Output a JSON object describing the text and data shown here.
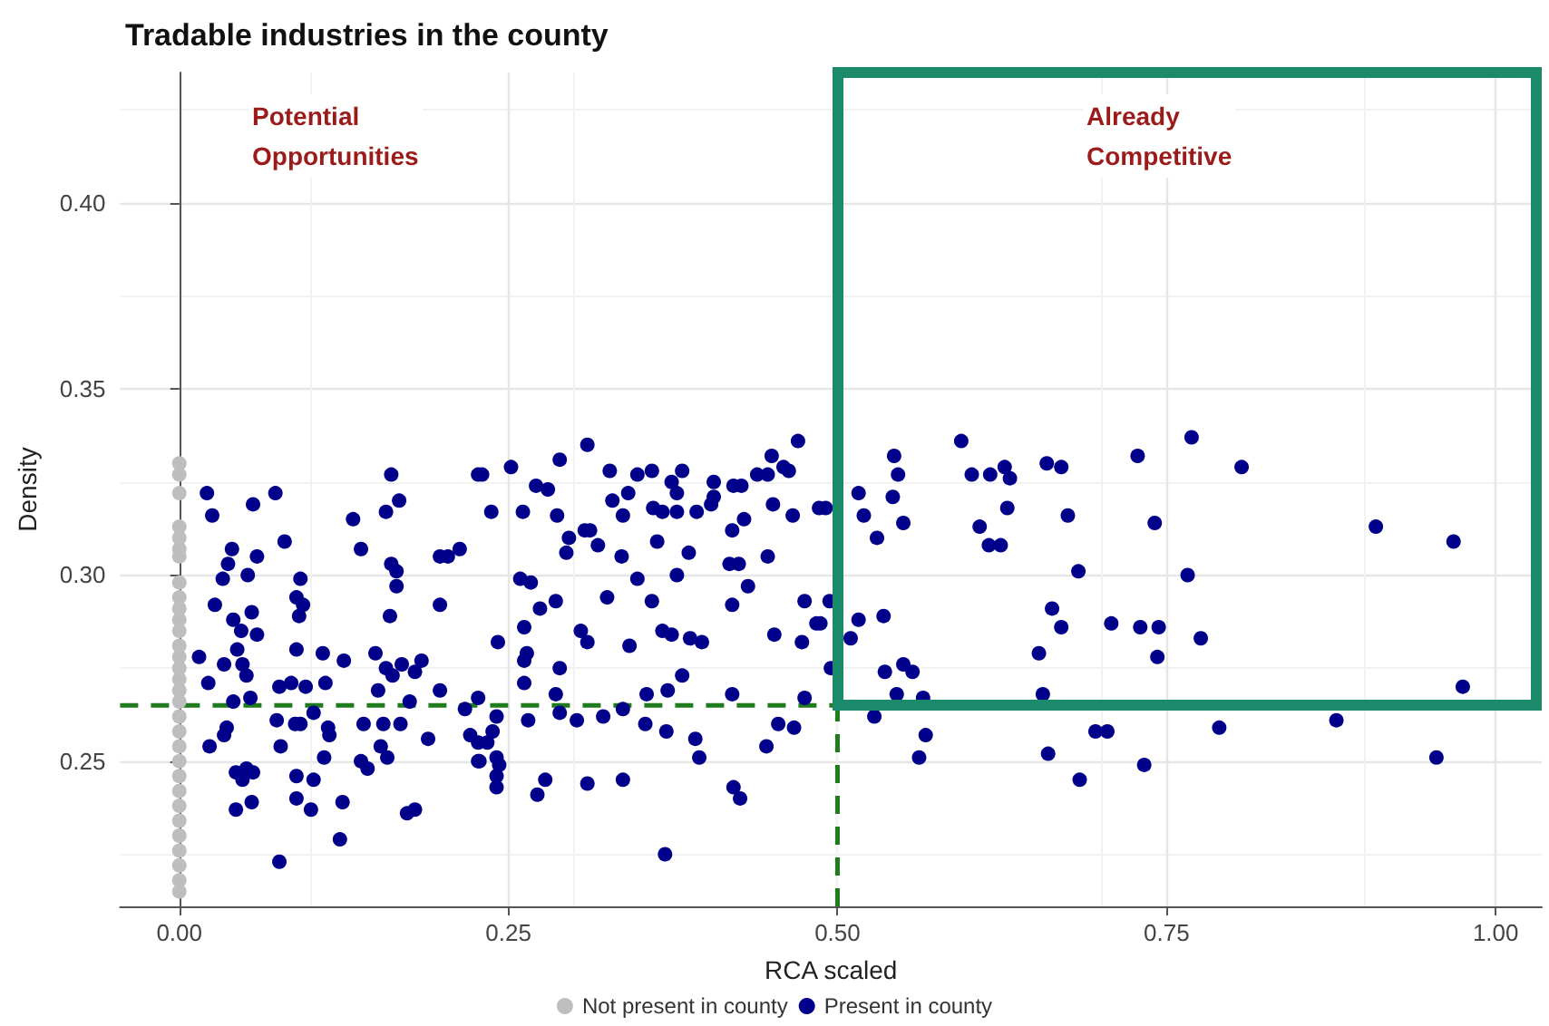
{
  "chart_data": {
    "type": "scatter",
    "title": "Tradable industries in the county",
    "xlabel": "RCA scaled",
    "ylabel": "Density",
    "annotations": [
      "Potential Opportunities",
      "Already Competitive"
    ],
    "xlim": [
      -0.045,
      1.035
    ],
    "ylim": [
      0.211,
      0.435
    ],
    "xticks": [
      {
        "value": 0,
        "label": "0.00"
      },
      {
        "value": 0.25,
        "label": "0.25"
      },
      {
        "value": 0.5,
        "label": "0.50"
      },
      {
        "value": 0.75,
        "label": "0.75"
      },
      {
        "value": 1,
        "label": "1.00"
      }
    ],
    "yticks": [
      {
        "value": 0.25,
        "label": "0.25"
      },
      {
        "value": 0.3,
        "label": "0.30"
      },
      {
        "value": 0.35,
        "label": "0.35"
      },
      {
        "value": 0.4,
        "label": "0.40"
      }
    ],
    "grid": true,
    "legend": "bottom",
    "marker": "circle",
    "ref_lines": [
      {
        "axis": "y",
        "value": 0.265,
        "color": "#1e7b1e",
        "line_style": "dashed"
      },
      {
        "axis": "x",
        "value": 0.5,
        "color": "#1e7b1e",
        "line_style": "dashed"
      }
    ],
    "series": [
      {
        "name": "Not present in county",
        "color": "#bebebe",
        "x": [
          0,
          0,
          0,
          0,
          0,
          0,
          0,
          0,
          0,
          0,
          0,
          0,
          0,
          0,
          0,
          0,
          0,
          0,
          0,
          0,
          0,
          0,
          0,
          0,
          0,
          0,
          0,
          0,
          0,
          0,
          0
        ],
        "values": [
          0.33,
          0.327,
          0.322,
          0.313,
          0.31,
          0.307,
          0.305,
          0.294,
          0.291,
          0.288,
          0.281,
          0.278,
          0.275,
          0.272,
          0.269,
          0.266,
          0.262,
          0.258,
          0.254,
          0.25,
          0.246,
          0.242,
          0.238,
          0.234,
          0.23,
          0.226,
          0.222,
          0.218,
          0.215,
          0.298,
          0.285
        ]
      },
      {
        "name": "Present in county",
        "color": "#00008b",
        "x": [
          0.594,
          0.543,
          0.546,
          0.516,
          0.542,
          0.52,
          0.55,
          0.53,
          0.602,
          0.616,
          0.627,
          0.631,
          0.629,
          0.608,
          0.615,
          0.624,
          0.659,
          0.67,
          0.675,
          0.683,
          0.728,
          0.741,
          0.516,
          0.535,
          0.51,
          0.536,
          0.55,
          0.557,
          0.545,
          0.565,
          0.528,
          0.567,
          0.562,
          0.663,
          0.67,
          0.653,
          0.656,
          0.66,
          0.684,
          0.696,
          0.705,
          0.733,
          0.708,
          0.73,
          0.744,
          0.743,
          0.494,
          0.487,
          0.495,
          0.491,
          0.769,
          0.807,
          0.766,
          0.776,
          0.909,
          0.968,
          0.975,
          0.79,
          0.879,
          0.955,
          0.021,
          0.025,
          0.073,
          0.056,
          0.08,
          0.04,
          0.037,
          0.059,
          0.033,
          0.052,
          0.027,
          0.055,
          0.041,
          0.047,
          0.059,
          0.015,
          0.044,
          0.048,
          0.034,
          0.022,
          0.051,
          0.054,
          0.041,
          0.023,
          0.036,
          0.034,
          0.043,
          0.051,
          0.048,
          0.056,
          0.055,
          0.043,
          0.076,
          0.092,
          0.089,
          0.094,
          0.091,
          0.089,
          0.076,
          0.085,
          0.096,
          0.102,
          0.074,
          0.088,
          0.092,
          0.077,
          0.089,
          0.102,
          0.089,
          0.1,
          0.109,
          0.111,
          0.113,
          0.114,
          0.11,
          0.124,
          0.122,
          0.125,
          0.132,
          0.138,
          0.161,
          0.167,
          0.157,
          0.161,
          0.165,
          0.165,
          0.16,
          0.149,
          0.157,
          0.162,
          0.169,
          0.151,
          0.14,
          0.138,
          0.143,
          0.155,
          0.153,
          0.158,
          0.168,
          0.173,
          0.179,
          0.175,
          0.179,
          0.184,
          0.189,
          0.198,
          0.204,
          0.213,
          0.198,
          0.198,
          0.217,
          0.221,
          0.227,
          0.227,
          0.227,
          0.23,
          0.252,
          0.237,
          0.261,
          0.271,
          0.28,
          0.289,
          0.31,
          0.287,
          0.296,
          0.294,
          0.308,
          0.312,
          0.318,
          0.327,
          0.329,
          0.341,
          0.337,
          0.336,
          0.348,
          0.359,
          0.36,
          0.367,
          0.363,
          0.374,
          0.378,
          0.382,
          0.378,
          0.393,
          0.387,
          0.378,
          0.406,
          0.406,
          0.404,
          0.421,
          0.427,
          0.439,
          0.45,
          0.447,
          0.459,
          0.463,
          0.47,
          0.451,
          0.466,
          0.486,
          0.42,
          0.429,
          0.447,
          0.418,
          0.425,
          0.432,
          0.42,
          0.348,
          0.359,
          0.325,
          0.286,
          0.274,
          0.259,
          0.267,
          0.305,
          0.31,
          0.342,
          0.367,
          0.374,
          0.388,
          0.397,
          0.262,
          0.242,
          0.264,
          0.262,
          0.262,
          0.289,
          0.286,
          0.382,
          0.371,
          0.355,
          0.337,
          0.322,
          0.302,
          0.289,
          0.265,
          0.354,
          0.37,
          0.392,
          0.395,
          0.42,
          0.452,
          0.473,
          0.484,
          0.475,
          0.475,
          0.455,
          0.467,
          0.446,
          0.241,
          0.238,
          0.234,
          0.241,
          0.228,
          0.243,
          0.241,
          0.241,
          0.278,
          0.272,
          0.31,
          0.337,
          0.369,
          0.421,
          0.426,
          0.227
        ],
        "values": [
          0.336,
          0.332,
          0.327,
          0.322,
          0.321,
          0.316,
          0.314,
          0.31,
          0.327,
          0.327,
          0.329,
          0.326,
          0.318,
          0.313,
          0.308,
          0.308,
          0.33,
          0.329,
          0.316,
          0.301,
          0.332,
          0.314,
          0.288,
          0.289,
          0.283,
          0.274,
          0.276,
          0.274,
          0.268,
          0.267,
          0.262,
          0.257,
          0.251,
          0.291,
          0.286,
          0.279,
          0.268,
          0.252,
          0.245,
          0.258,
          0.258,
          0.249,
          0.287,
          0.286,
          0.286,
          0.278,
          0.293,
          0.287,
          0.275,
          0.318,
          0.337,
          0.329,
          0.3,
          0.283,
          0.313,
          0.309,
          0.27,
          0.259,
          0.261,
          0.251,
          0.322,
          0.316,
          0.322,
          0.319,
          0.309,
          0.307,
          0.303,
          0.305,
          0.299,
          0.3,
          0.292,
          0.29,
          0.288,
          0.285,
          0.284,
          0.278,
          0.28,
          0.276,
          0.276,
          0.271,
          0.273,
          0.267,
          0.266,
          0.254,
          0.259,
          0.257,
          0.247,
          0.248,
          0.245,
          0.247,
          0.239,
          0.237,
          0.223,
          0.299,
          0.294,
          0.292,
          0.289,
          0.28,
          0.27,
          0.271,
          0.27,
          0.263,
          0.261,
          0.26,
          0.26,
          0.254,
          0.246,
          0.245,
          0.24,
          0.237,
          0.279,
          0.271,
          0.259,
          0.257,
          0.251,
          0.239,
          0.229,
          0.277,
          0.315,
          0.307,
          0.327,
          0.32,
          0.317,
          0.303,
          0.301,
          0.297,
          0.289,
          0.279,
          0.275,
          0.273,
          0.276,
          0.269,
          0.26,
          0.25,
          0.248,
          0.26,
          0.254,
          0.251,
          0.26,
          0.236,
          0.237,
          0.266,
          0.274,
          0.277,
          0.256,
          0.305,
          0.305,
          0.307,
          0.292,
          0.269,
          0.264,
          0.257,
          0.255,
          0.25,
          0.327,
          0.327,
          0.329,
          0.317,
          0.317,
          0.324,
          0.323,
          0.331,
          0.335,
          0.316,
          0.31,
          0.306,
          0.312,
          0.312,
          0.308,
          0.328,
          0.32,
          0.322,
          0.316,
          0.305,
          0.327,
          0.328,
          0.318,
          0.317,
          0.309,
          0.325,
          0.322,
          0.328,
          0.317,
          0.317,
          0.306,
          0.3,
          0.325,
          0.321,
          0.319,
          0.324,
          0.324,
          0.327,
          0.332,
          0.327,
          0.329,
          0.328,
          0.336,
          0.319,
          0.316,
          0.318,
          0.312,
          0.315,
          0.305,
          0.303,
          0.303,
          0.297,
          0.292,
          0.299,
          0.293,
          0.294,
          0.293,
          0.291,
          0.299,
          0.298,
          0.285,
          0.282,
          0.281,
          0.285,
          0.284,
          0.283,
          0.282,
          0.286,
          0.282,
          0.279,
          0.277,
          0.271,
          0.275,
          0.268,
          0.273,
          0.269,
          0.268,
          0.264,
          0.262,
          0.261,
          0.263,
          0.261,
          0.26,
          0.258,
          0.256,
          0.251,
          0.268,
          0.284,
          0.282,
          0.287,
          0.293,
          0.267,
          0.26,
          0.259,
          0.254,
          0.262,
          0.258,
          0.255,
          0.251,
          0.25,
          0.249,
          0.246,
          0.243,
          0.245,
          0.241,
          0.244,
          0.245,
          0.225,
          0.243,
          0.24,
          0.267
        ]
      }
    ]
  }
}
